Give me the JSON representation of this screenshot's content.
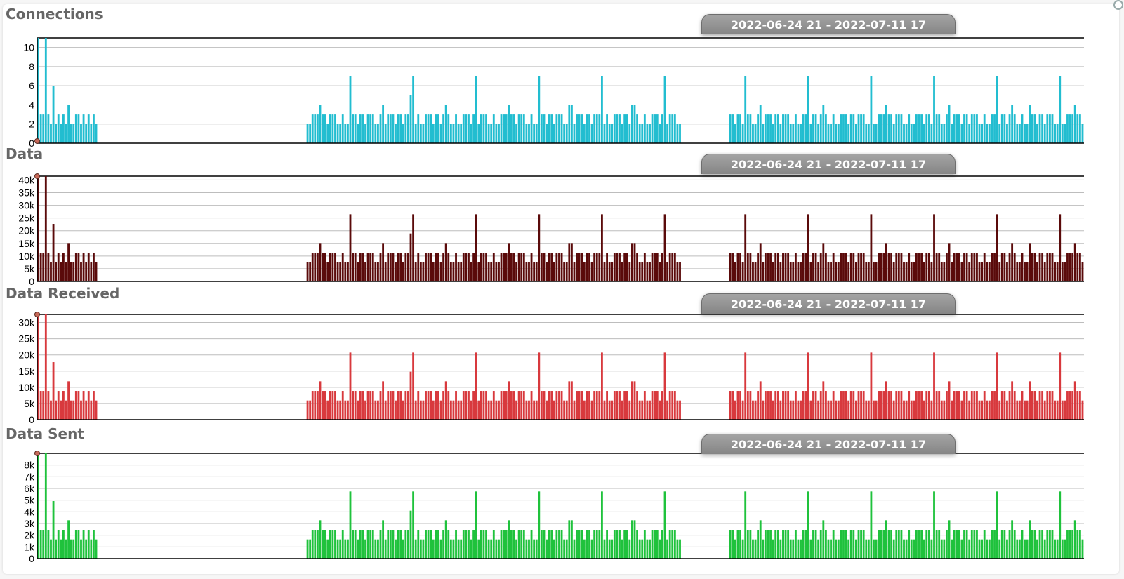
{
  "charts": [
    {
      "id": "connections",
      "title": "Connections",
      "range_label": "2022-06-24 21 - 2022-07-11 17",
      "color": "#22bdd0",
      "ymax": 11,
      "ticks": [
        0,
        2,
        4,
        6,
        8,
        10
      ],
      "tick_labels": [
        "0",
        "2",
        "4",
        "6",
        "8",
        "10"
      ],
      "scale": 1
    },
    {
      "id": "data",
      "title": "Data",
      "range_label": "2022-06-24 21 - 2022-07-11 17",
      "color": "#5a0a0a",
      "ymax": 41500,
      "ticks": [
        0,
        5000,
        10000,
        15000,
        20000,
        25000,
        30000,
        35000,
        40000
      ],
      "tick_labels": [
        "0",
        "5k",
        "10k",
        "15k",
        "20k",
        "25k",
        "30k",
        "35k",
        "40k"
      ],
      "scale": 3780
    },
    {
      "id": "data-received",
      "title": "Data Received",
      "range_label": "2022-06-24 21 - 2022-07-11 17",
      "color": "#d8393d",
      "ymax": 32500,
      "ticks": [
        0,
        5000,
        10000,
        15000,
        20000,
        25000,
        30000
      ],
      "tick_labels": [
        "0",
        "5k",
        "10k",
        "15k",
        "20k",
        "25k",
        "30k"
      ],
      "scale": 2960
    },
    {
      "id": "data-sent",
      "title": "Data Sent",
      "range_label": "2022-06-24 21 - 2022-07-11 17",
      "color": "#1fc23c",
      "ymax": 9000,
      "ticks": [
        0,
        1000,
        2000,
        3000,
        4000,
        5000,
        6000,
        7000,
        8000
      ],
      "tick_labels": [
        "0",
        "1k",
        "2k",
        "3k",
        "4k",
        "5k",
        "6k",
        "7k",
        "8k"
      ],
      "scale": 820
    }
  ],
  "chart_data": {
    "type": "bar",
    "x_range": [
      "2022-06-24 21",
      "2022-07-11 17"
    ],
    "ylabels": [
      "Connections",
      "Data",
      "Data Received",
      "Data Sent"
    ],
    "series": [
      {
        "name": "Connections",
        "active_segments": [
          [
            0,
            23
          ],
          [
            107,
            255
          ],
          [
            275,
            415
          ]
        ],
        "baseline": 2,
        "typical_peak": 3,
        "max_value": 11
      },
      {
        "name": "Data",
        "active_segments": [
          [
            0,
            23
          ],
          [
            107,
            255
          ],
          [
            275,
            415
          ]
        ],
        "baseline": 7500,
        "typical_peak": 11300,
        "max_value": 41500
      },
      {
        "name": "Data Received",
        "active_segments": [
          [
            0,
            23
          ],
          [
            107,
            255
          ],
          [
            275,
            415
          ]
        ],
        "baseline": 5800,
        "typical_peak": 8900,
        "max_value": 32500
      },
      {
        "name": "Data Sent",
        "active_segments": [
          [
            0,
            23
          ],
          [
            107,
            255
          ],
          [
            275,
            415
          ]
        ],
        "baseline": 1700,
        "typical_peak": 2600,
        "max_value": 9000
      }
    ],
    "bar_count": 416
  }
}
